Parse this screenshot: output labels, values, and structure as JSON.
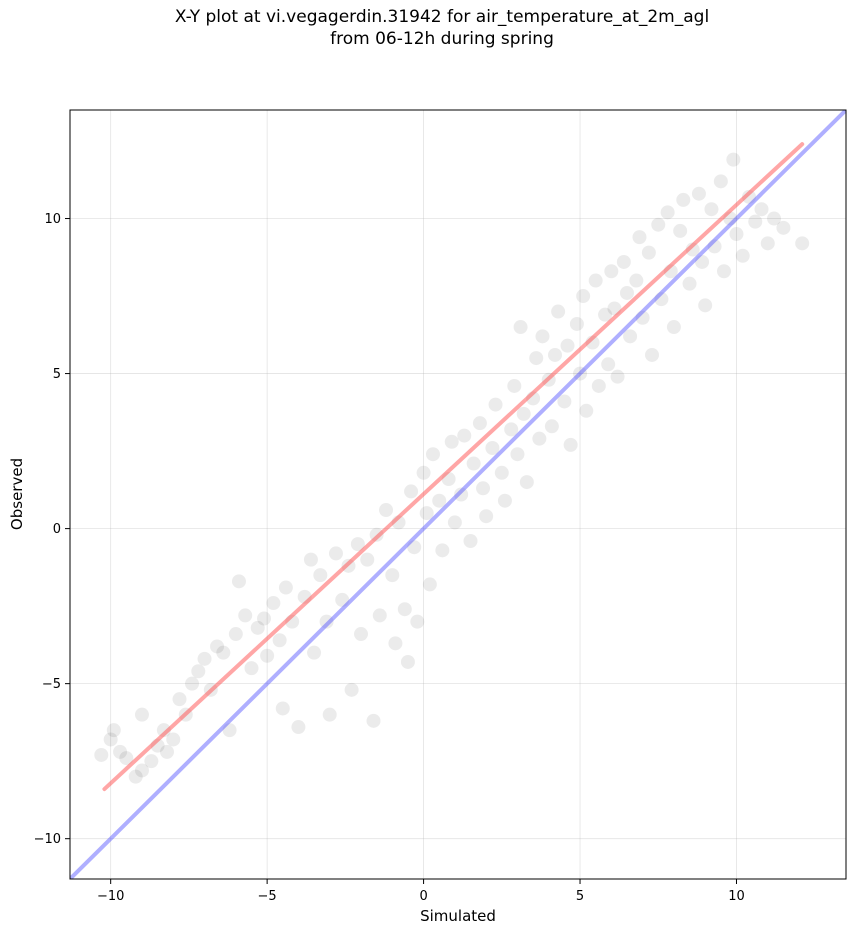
{
  "chart_data": {
    "type": "scatter",
    "title_line1": "X-Y plot at vi.vegagerdin.31942 for air_temperature_at_2m_agl",
    "title_line2": "from 06-12h during spring",
    "xlabel": "Simulated",
    "ylabel": "Observed",
    "xlim": [
      -11.3,
      13.5
    ],
    "ylim": [
      -11.3,
      13.5
    ],
    "xticks": [
      -10,
      -5,
      0,
      5,
      10
    ],
    "yticks": [
      -10,
      -5,
      0,
      5,
      10
    ],
    "xtick_labels": [
      "−10",
      "−5",
      "0",
      "5",
      "10"
    ],
    "ytick_labels": [
      "−10",
      "−5",
      "0",
      "5",
      "10"
    ],
    "grid": true,
    "point_color": "#000000",
    "point_alpha": 0.08,
    "regression_line": {
      "color": "#ff4d4d",
      "x": [
        -10.2,
        12.1
      ],
      "y": [
        -8.4,
        12.4
      ]
    },
    "identity_line": {
      "color": "#4d4dff",
      "x": [
        -11.3,
        13.5
      ],
      "y": [
        -11.3,
        13.5
      ]
    },
    "points": [
      [
        -10.3,
        -7.3
      ],
      [
        -10.0,
        -6.8
      ],
      [
        -9.9,
        -6.5
      ],
      [
        -9.7,
        -7.2
      ],
      [
        -9.5,
        -7.4
      ],
      [
        -9.2,
        -8.0
      ],
      [
        -9.0,
        -7.8
      ],
      [
        -9.0,
        -6.0
      ],
      [
        -8.7,
        -7.5
      ],
      [
        -8.5,
        -7.0
      ],
      [
        -8.3,
        -6.5
      ],
      [
        -8.2,
        -7.2
      ],
      [
        -8.0,
        -6.8
      ],
      [
        -7.8,
        -5.5
      ],
      [
        -7.6,
        -6.0
      ],
      [
        -7.4,
        -5.0
      ],
      [
        -7.2,
        -4.6
      ],
      [
        -7.0,
        -4.2
      ],
      [
        -6.8,
        -5.2
      ],
      [
        -6.6,
        -3.8
      ],
      [
        -6.4,
        -4.0
      ],
      [
        -6.2,
        -6.5
      ],
      [
        -6.0,
        -3.4
      ],
      [
        -5.9,
        -1.7
      ],
      [
        -5.7,
        -2.8
      ],
      [
        -5.5,
        -4.5
      ],
      [
        -5.3,
        -3.2
      ],
      [
        -5.1,
        -2.9
      ],
      [
        -5.0,
        -4.1
      ],
      [
        -4.8,
        -2.4
      ],
      [
        -4.6,
        -3.6
      ],
      [
        -4.5,
        -5.8
      ],
      [
        -4.4,
        -1.9
      ],
      [
        -4.2,
        -3.0
      ],
      [
        -4.0,
        -6.4
      ],
      [
        -3.8,
        -2.2
      ],
      [
        -3.6,
        -1.0
      ],
      [
        -3.5,
        -4.0
      ],
      [
        -3.3,
        -1.5
      ],
      [
        -3.1,
        -3.0
      ],
      [
        -3.0,
        -6.0
      ],
      [
        -2.8,
        -0.8
      ],
      [
        -2.6,
        -2.3
      ],
      [
        -2.4,
        -1.2
      ],
      [
        -2.3,
        -5.2
      ],
      [
        -2.1,
        -0.5
      ],
      [
        -2.0,
        -3.4
      ],
      [
        -1.8,
        -1.0
      ],
      [
        -1.6,
        -6.2
      ],
      [
        -1.5,
        -0.2
      ],
      [
        -1.4,
        -2.8
      ],
      [
        -1.2,
        0.6
      ],
      [
        -1.0,
        -1.5
      ],
      [
        -0.9,
        -3.7
      ],
      [
        -0.8,
        0.2
      ],
      [
        -0.6,
        -2.6
      ],
      [
        -0.5,
        -4.3
      ],
      [
        -0.4,
        1.2
      ],
      [
        -0.3,
        -0.6
      ],
      [
        -0.2,
        -3.0
      ],
      [
        0.0,
        1.8
      ],
      [
        0.1,
        0.5
      ],
      [
        0.2,
        -1.8
      ],
      [
        0.3,
        2.4
      ],
      [
        0.5,
        0.9
      ],
      [
        0.6,
        -0.7
      ],
      [
        0.8,
        1.6
      ],
      [
        0.9,
        2.8
      ],
      [
        1.0,
        0.2
      ],
      [
        1.2,
        1.1
      ],
      [
        1.3,
        3.0
      ],
      [
        1.5,
        -0.4
      ],
      [
        1.6,
        2.1
      ],
      [
        1.8,
        3.4
      ],
      [
        1.9,
        1.3
      ],
      [
        2.0,
        0.4
      ],
      [
        2.2,
        2.6
      ],
      [
        2.3,
        4.0
      ],
      [
        2.5,
        1.8
      ],
      [
        2.6,
        0.9
      ],
      [
        2.8,
        3.2
      ],
      [
        2.9,
        4.6
      ],
      [
        3.0,
        2.4
      ],
      [
        3.1,
        6.5
      ],
      [
        3.2,
        3.7
      ],
      [
        3.3,
        1.5
      ],
      [
        3.5,
        4.2
      ],
      [
        3.6,
        5.5
      ],
      [
        3.7,
        2.9
      ],
      [
        3.8,
        6.2
      ],
      [
        4.0,
        4.8
      ],
      [
        4.1,
        3.3
      ],
      [
        4.2,
        5.6
      ],
      [
        4.3,
        7.0
      ],
      [
        4.5,
        4.1
      ],
      [
        4.6,
        5.9
      ],
      [
        4.7,
        2.7
      ],
      [
        4.9,
        6.6
      ],
      [
        5.0,
        5.0
      ],
      [
        5.1,
        7.5
      ],
      [
        5.2,
        3.8
      ],
      [
        5.4,
        6.0
      ],
      [
        5.5,
        8.0
      ],
      [
        5.6,
        4.6
      ],
      [
        5.8,
        6.9
      ],
      [
        5.9,
        5.3
      ],
      [
        6.0,
        8.3
      ],
      [
        6.1,
        7.1
      ],
      [
        6.2,
        4.9
      ],
      [
        6.4,
        8.6
      ],
      [
        6.5,
        7.6
      ],
      [
        6.6,
        6.2
      ],
      [
        6.8,
        8.0
      ],
      [
        6.9,
        9.4
      ],
      [
        7.0,
        6.8
      ],
      [
        7.2,
        8.9
      ],
      [
        7.3,
        5.6
      ],
      [
        7.5,
        9.8
      ],
      [
        7.6,
        7.4
      ],
      [
        7.8,
        10.2
      ],
      [
        7.9,
        8.3
      ],
      [
        8.0,
        6.5
      ],
      [
        8.2,
        9.6
      ],
      [
        8.3,
        10.6
      ],
      [
        8.5,
        7.9
      ],
      [
        8.6,
        9.0
      ],
      [
        8.8,
        10.8
      ],
      [
        8.9,
        8.6
      ],
      [
        9.0,
        7.2
      ],
      [
        9.2,
        10.3
      ],
      [
        9.3,
        9.1
      ],
      [
        9.5,
        11.2
      ],
      [
        9.6,
        8.3
      ],
      [
        9.8,
        10.0
      ],
      [
        9.9,
        11.9
      ],
      [
        10.0,
        9.5
      ],
      [
        10.2,
        8.8
      ],
      [
        10.4,
        10.7
      ],
      [
        10.6,
        9.9
      ],
      [
        10.8,
        10.3
      ],
      [
        11.0,
        9.2
      ],
      [
        11.2,
        10.0
      ],
      [
        11.5,
        9.7
      ],
      [
        12.1,
        9.2
      ]
    ]
  }
}
